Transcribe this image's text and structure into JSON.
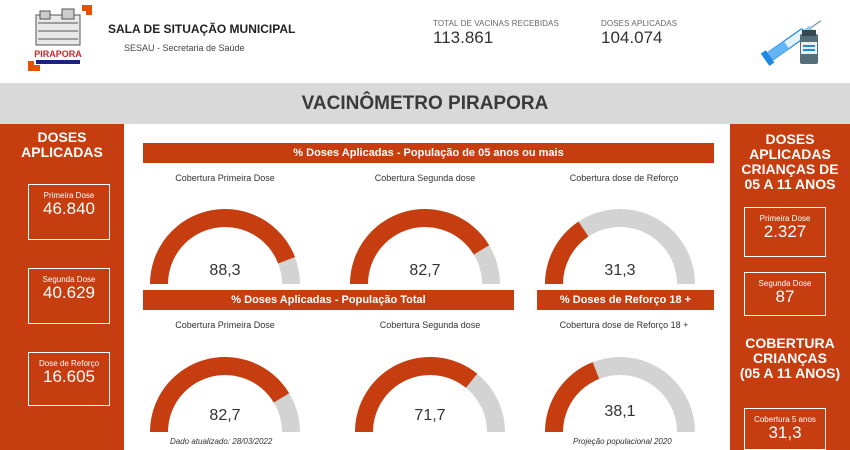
{
  "header": {
    "logo_text": "PIRAPORA",
    "title": "SALA DE SITUAÇÃO MUNICIPAL",
    "subtitle": "SESAU - Secretaria de Saúde",
    "kpis": [
      {
        "label": "TOTAL DE VACINAS RECEBIDAS",
        "value": "113.861"
      },
      {
        "label": "DOSES APLICADAS",
        "value": "104.074"
      }
    ]
  },
  "banner": {
    "title": "VACINÔMETRO PIRAPORA"
  },
  "left_panel": {
    "title_line1": "DOSES",
    "title_line2": "APLICADAS",
    "cards": [
      {
        "label": "Primeira Dose",
        "value": "46.840"
      },
      {
        "label": "Segunda Dose",
        "value": "40.629"
      },
      {
        "label": "Dose de Reforço",
        "value": "16.605"
      }
    ]
  },
  "right_panel": {
    "title_lines": [
      "DOSES",
      "APLICADAS",
      "CRIANÇAS DE",
      "05 A 11 ANOS"
    ],
    "cards": [
      {
        "label": "Primeira Dose",
        "value": "2.327"
      },
      {
        "label": "Segunda Dose",
        "value": "87"
      }
    ],
    "coverage_title_lines": [
      "COBERTURA",
      "CRIANÇAS",
      "(05 A 11 ANOS)"
    ],
    "coverage_card": {
      "label": "Cobertura 5 anos",
      "value": "31,3"
    }
  },
  "section1": {
    "title": "% Doses Aplicadas - População de 05 anos ou mais",
    "gauges": [
      {
        "caption": "Cobertura Primeira Dose",
        "value": 88.3,
        "display": "88,3"
      },
      {
        "caption": "Cobertura Segunda dose",
        "value": 82.7,
        "display": "82,7"
      },
      {
        "caption": "Cobertura dose de Reforço",
        "value": 31.3,
        "display": "31,3"
      }
    ]
  },
  "section2": {
    "title": "% Doses Aplicadas - População Total",
    "gauges": [
      {
        "caption": "Cobertura Primeira Dose",
        "value": 82.7,
        "display": "82,7"
      },
      {
        "caption": "Cobertura Segunda dose",
        "value": 71.7,
        "display": "71,7"
      }
    ],
    "footnote": "Dado atualizado: 28/03/2022"
  },
  "section3": {
    "title": "% Doses de Reforço 18 +",
    "gauge": {
      "caption": "Cobertura dose de Reforço 18 +",
      "value": 38.1,
      "display": "38,1"
    },
    "footnote": "Projeção populacional 2020"
  },
  "colors": {
    "accent": "#c63d0f",
    "track": "#d3d3d3",
    "banner": "#d9d9d9"
  }
}
